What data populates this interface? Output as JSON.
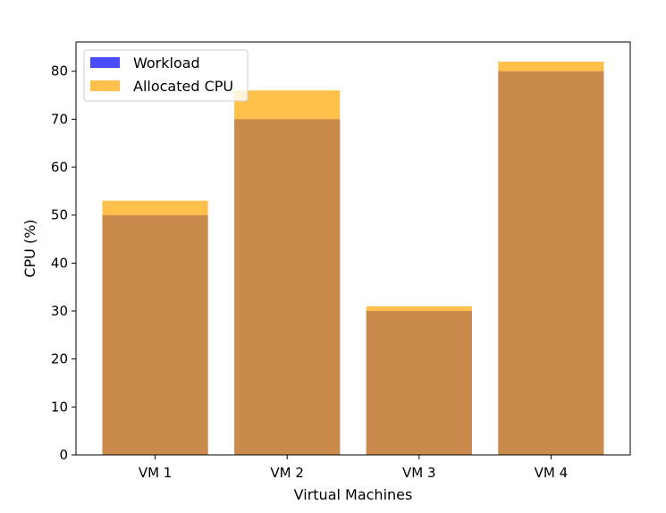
{
  "chart_data": {
    "type": "bar",
    "categories": [
      "VM 1",
      "VM 2",
      "VM 3",
      "VM 4"
    ],
    "series": [
      {
        "name": "Workload",
        "values": [
          50,
          70,
          30,
          80
        ],
        "color": "#0000ff",
        "opacity": 0.7
      },
      {
        "name": "Allocated CPU",
        "values": [
          53,
          76,
          31,
          82
        ],
        "color": "#ffa500",
        "opacity": 0.7
      }
    ],
    "title": "",
    "xlabel": "Virtual Machines",
    "ylabel": "CPU (%)",
    "ylim": [
      0,
      86.1
    ],
    "yticks": [
      0,
      10,
      20,
      30,
      40,
      50,
      60,
      70,
      80
    ],
    "grid": false,
    "legend": "top-left"
  }
}
